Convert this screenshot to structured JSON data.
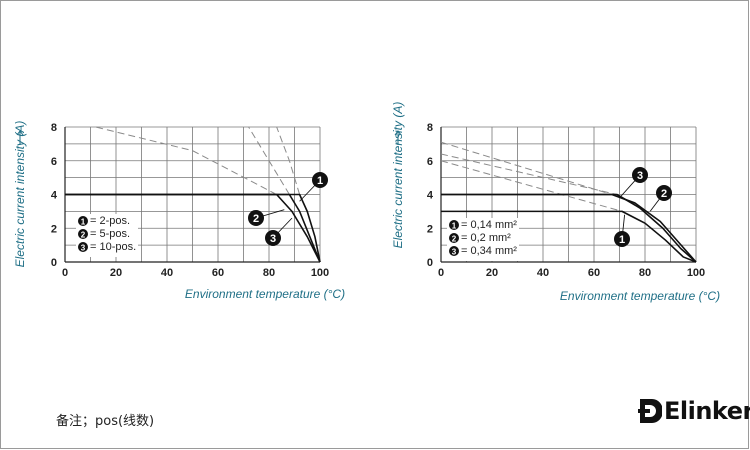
{
  "note": "备注；pos(线数)",
  "brand": {
    "name": "Elinker"
  },
  "chart_data": [
    {
      "type": "line",
      "xlabel": "Environment temperature  (°C)",
      "ylabel": "Electric current intensity (A)",
      "xlim": [
        0,
        100
      ],
      "ylim": [
        0,
        8
      ],
      "xticks": [
        0,
        20,
        40,
        60,
        80,
        100
      ],
      "yticks": [
        0,
        2,
        4,
        6,
        8
      ],
      "grid": true,
      "legend": [
        {
          "badge": "1",
          "label": "= 2-pos."
        },
        {
          "badge": "2",
          "label": "= 5-pos."
        },
        {
          "badge": "3",
          "label": "= 10-pos."
        }
      ],
      "series": [
        {
          "badge": "1",
          "solid": [
            [
              0,
              4
            ],
            [
              92,
              4
            ],
            [
              95,
              3
            ],
            [
              98,
              1.5
            ],
            [
              100,
              0
            ]
          ],
          "dashed": [
            [
              92,
              4
            ],
            [
              88,
              6
            ],
            [
              83,
              8
            ]
          ]
        },
        {
          "badge": "2",
          "solid": [
            [
              0,
              4
            ],
            [
              88,
              4
            ],
            [
              92,
              3
            ],
            [
              96,
              1.5
            ],
            [
              100,
              0
            ]
          ],
          "dashed": [
            [
              88,
              4
            ],
            [
              80,
              6
            ],
            [
              72,
              8
            ]
          ]
        },
        {
          "badge": "3",
          "solid": [
            [
              0,
              4
            ],
            [
              83,
              4
            ],
            [
              89,
              3
            ],
            [
              95,
              1.5
            ],
            [
              100,
              0
            ]
          ],
          "dashed": [
            [
              83,
              4
            ],
            [
              50,
              6.6
            ],
            [
              12,
              8
            ]
          ]
        }
      ]
    },
    {
      "type": "line",
      "xlabel": "Environment temperature  (°C)",
      "ylabel": "Electric current intensity (A)",
      "xlim": [
        0,
        100
      ],
      "ylim": [
        0,
        8
      ],
      "xticks": [
        0,
        20,
        40,
        60,
        80,
        100
      ],
      "yticks": [
        0,
        2,
        4,
        6,
        8
      ],
      "grid": true,
      "legend": [
        {
          "badge": "1",
          "label": "= 0,14 mm²"
        },
        {
          "badge": "2",
          "label": "= 0,2 mm²"
        },
        {
          "badge": "3",
          "label": "= 0,34 mm²"
        }
      ],
      "series": [
        {
          "badge": "1",
          "solid": [
            [
              0,
              3
            ],
            [
              71,
              3
            ],
            [
              80,
              2.3
            ],
            [
              88,
              1.3
            ],
            [
              95,
              0.3
            ],
            [
              100,
              0
            ]
          ],
          "dashed": [
            [
              0,
              6
            ],
            [
              71,
              3
            ]
          ]
        },
        {
          "badge": "2",
          "solid": [
            [
              0,
              4
            ],
            [
              69,
              4
            ],
            [
              78,
              3.2
            ],
            [
              87,
              2
            ],
            [
              94,
              0.8
            ],
            [
              100,
              0
            ]
          ],
          "dashed": [
            [
              0,
              6.4
            ],
            [
              69,
              4
            ]
          ]
        },
        {
          "badge": "3",
          "solid": [
            [
              0,
              4
            ],
            [
              67,
              4
            ],
            [
              76,
              3.5
            ],
            [
              86,
              2.4
            ],
            [
              93,
              1.2
            ],
            [
              100,
              0
            ]
          ],
          "dashed": [
            [
              0,
              7.1
            ],
            [
              67,
              4
            ]
          ]
        }
      ]
    }
  ]
}
